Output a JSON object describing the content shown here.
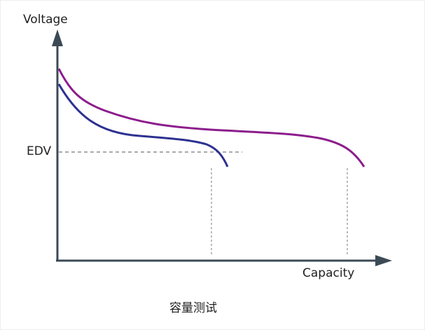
{
  "diagram": {
    "y_axis_label": "Voltage",
    "x_axis_label": "Capacity",
    "threshold_label": "EDV",
    "caption": "容量测试"
  }
}
